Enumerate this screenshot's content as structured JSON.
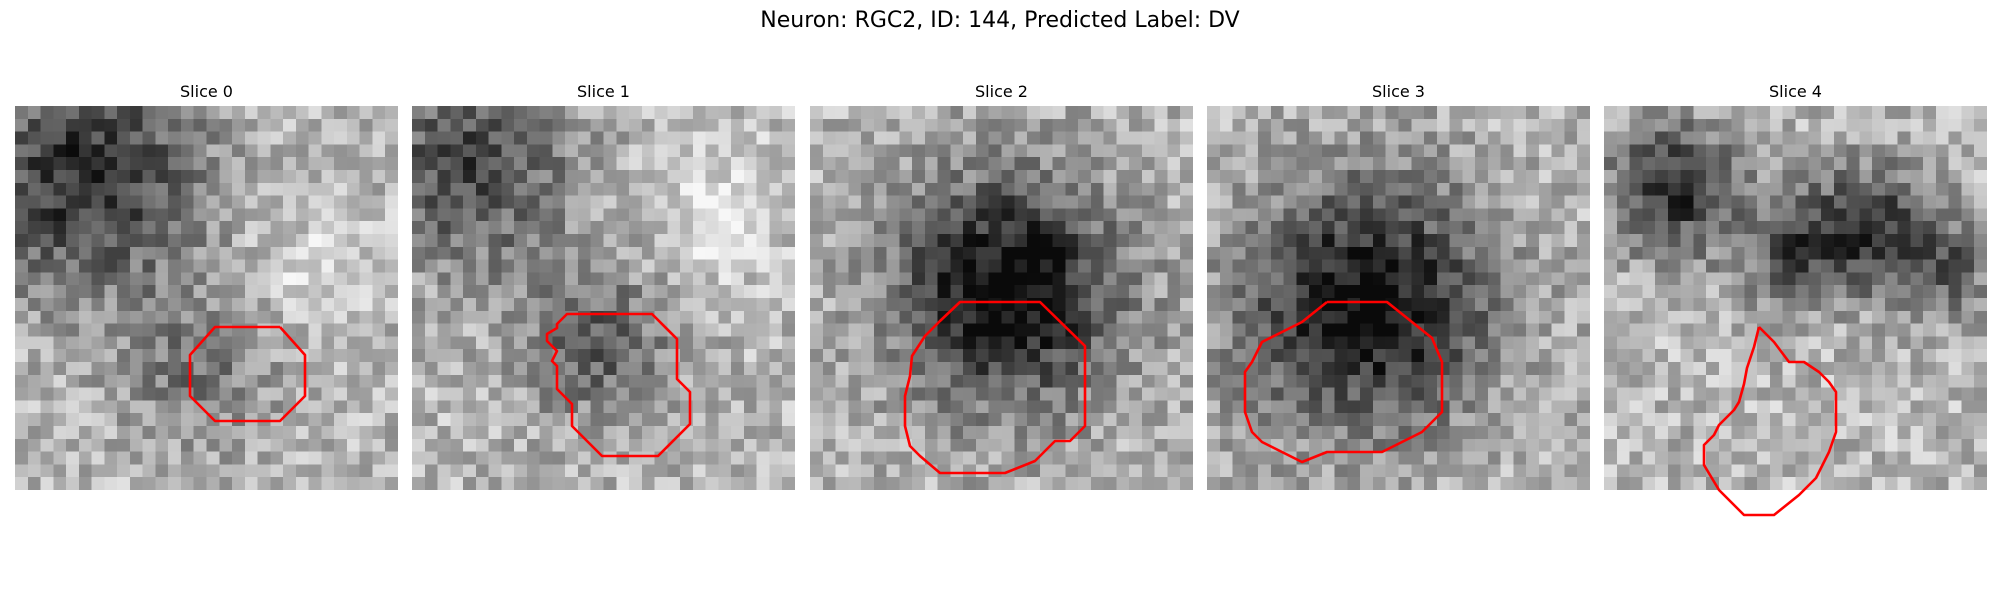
{
  "figure": {
    "title": "Neuron: RGC2, ID: 144, Predicted Label: DV",
    "contour_color": "#ff0000",
    "colormap": "grayscale",
    "panels": [
      {
        "label": "Slice 0"
      },
      {
        "label": "Slice 1"
      },
      {
        "label": "Slice 2"
      },
      {
        "label": "Slice 3"
      },
      {
        "label": "Slice 4"
      }
    ]
  }
}
